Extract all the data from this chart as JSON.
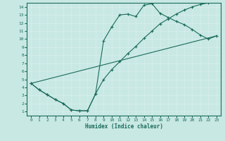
{
  "background_color": "#c8e8e4",
  "grid_color": "#b0d8d0",
  "line_color": "#1a6b5a",
  "xlabel": "Humidex (Indice chaleur)",
  "xlim": [
    -0.5,
    23.5
  ],
  "ylim": [
    0.5,
    14.5
  ],
  "xticks": [
    0,
    1,
    2,
    3,
    4,
    5,
    6,
    7,
    8,
    9,
    10,
    11,
    12,
    13,
    14,
    15,
    16,
    17,
    18,
    19,
    20,
    21,
    22,
    23
  ],
  "yticks": [
    1,
    2,
    3,
    4,
    5,
    6,
    7,
    8,
    9,
    10,
    11,
    12,
    13,
    14
  ],
  "curve1_x": [
    0,
    1,
    2,
    3,
    4,
    5,
    6,
    7,
    8,
    9,
    10,
    11,
    12,
    13,
    14,
    15,
    16,
    17,
    18,
    19,
    20,
    21,
    22,
    23
  ],
  "curve1_y": [
    4.5,
    3.7,
    3.1,
    2.5,
    2.0,
    1.2,
    1.1,
    1.1,
    3.2,
    9.8,
    11.5,
    13.0,
    13.1,
    12.8,
    14.2,
    14.4,
    13.2,
    12.7,
    12.2,
    11.8,
    11.2,
    10.5,
    10.0,
    10.4
  ],
  "curve2_x": [
    0,
    1,
    2,
    3,
    4,
    5,
    6,
    7,
    8,
    9,
    10,
    11,
    12,
    13,
    14,
    15,
    16,
    17,
    18,
    19,
    20,
    21,
    22,
    23
  ],
  "curve2_y": [
    4.5,
    3.7,
    3.1,
    2.5,
    2.0,
    1.2,
    1.1,
    1.1,
    3.2,
    5.0,
    6.2,
    7.2,
    8.2,
    9.1,
    10.1,
    11.0,
    11.9,
    12.5,
    13.1,
    13.6,
    14.0,
    14.3,
    14.5,
    14.8
  ],
  "curve3_x": [
    0,
    23
  ],
  "curve3_y": [
    4.5,
    10.4
  ]
}
